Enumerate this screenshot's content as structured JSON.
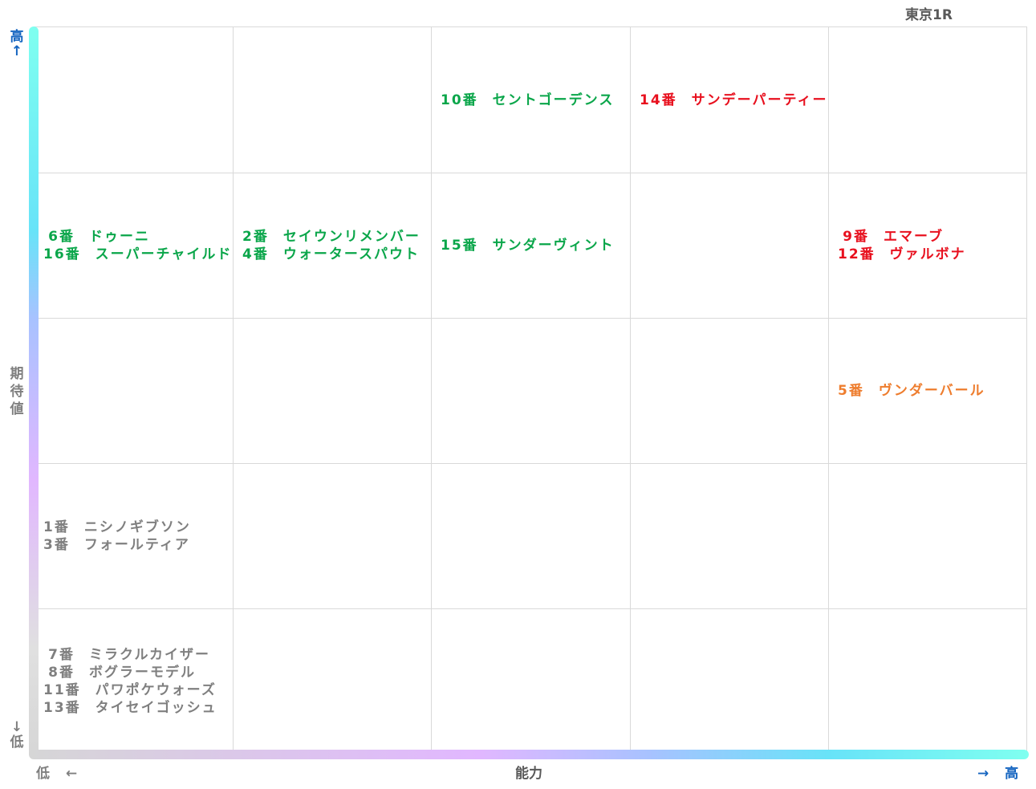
{
  "title": "東京1R",
  "chart_data": {
    "type": "table",
    "xlabel": "能力",
    "ylabel": [
      "期",
      "待",
      "値"
    ],
    "x_low_label": "低 ←",
    "x_high_label": "→ 高",
    "y_high_label": [
      "高",
      "↑"
    ],
    "y_low_label": [
      "↓",
      "低"
    ],
    "columns": 5,
    "rows": 5,
    "colors": {
      "green": "#0aa64a",
      "red": "#e8101e",
      "orange": "#ee7d2e",
      "gray": "#7f7f7f",
      "axis_label_blue": "#1565c0",
      "axis_label_gray": "#7f7f7f"
    },
    "cells": [
      {
        "col": 3,
        "row": 1,
        "color": "#0aa64a",
        "entries": [
          {
            "num": "10番",
            "name": "セントゴーデンス"
          }
        ]
      },
      {
        "col": 4,
        "row": 1,
        "color": "#e8101e",
        "entries": [
          {
            "num": "14番",
            "name": "サンデーパーティー"
          }
        ]
      },
      {
        "col": 1,
        "row": 2,
        "color": "#0aa64a",
        "entries": [
          {
            "num": "6番",
            "name": "ドゥーニ"
          },
          {
            "num": "16番",
            "name": "スーパーチャイルド"
          }
        ]
      },
      {
        "col": 2,
        "row": 2,
        "color": "#0aa64a",
        "entries": [
          {
            "num": "2番",
            "name": "セイウンリメンバー"
          },
          {
            "num": "4番",
            "name": "ウォータースパウト"
          }
        ]
      },
      {
        "col": 3,
        "row": 2,
        "color": "#0aa64a",
        "entries": [
          {
            "num": "15番",
            "name": "サンダーヴィント"
          }
        ]
      },
      {
        "col": 5,
        "row": 2,
        "color": "#e8101e",
        "entries": [
          {
            "num": "9番",
            "name": "エマーブ"
          },
          {
            "num": "12番",
            "name": "ヴァルボナ"
          }
        ]
      },
      {
        "col": 5,
        "row": 3,
        "color": "#ee7d2e",
        "entries": [
          {
            "num": "5番",
            "name": "ヴンダーバール"
          }
        ]
      },
      {
        "col": 1,
        "row": 4,
        "color": "#7f7f7f",
        "entries": [
          {
            "num": "1番",
            "name": "ニシノギブソン"
          },
          {
            "num": "3番",
            "name": "フォールティア"
          }
        ]
      },
      {
        "col": 1,
        "row": 5,
        "color": "#7f7f7f",
        "entries": [
          {
            "num": "7番",
            "name": "ミラクルカイザー"
          },
          {
            "num": "8番",
            "name": "ボグラーモデル"
          },
          {
            "num": "11番",
            "name": "パワポケウォーズ"
          },
          {
            "num": "13番",
            "name": "タイセイゴッシュ"
          }
        ]
      }
    ]
  }
}
